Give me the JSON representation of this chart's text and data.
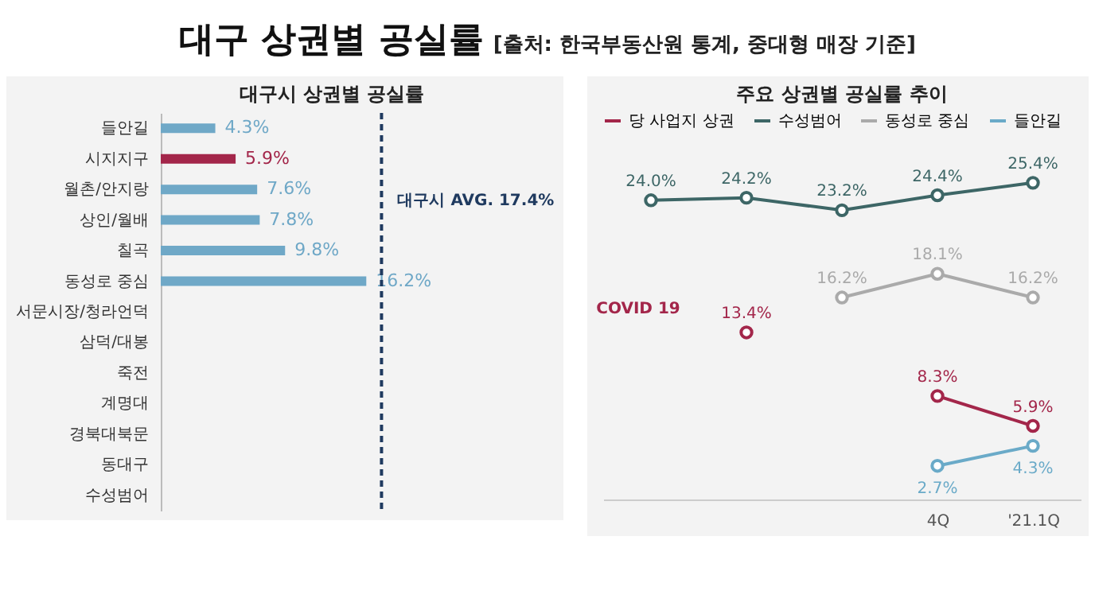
{
  "chart_data": [
    {
      "type": "other",
      "title": "대구 상권별 공실률",
      "subtitle": "[출처: 한국부동산원 통계, 중대형 매장 기준]"
    },
    {
      "type": "bar",
      "orientation": "horizontal",
      "title": "대구시 상권별 공실률",
      "categories": [
        "들안길",
        "시지지구",
        "월촌/안지랑",
        "상인/월배",
        "칠곡",
        "동성로 중심",
        "서문시장/청라언덕",
        "삼덕/대봉",
        "죽전",
        "계명대",
        "경북대북문",
        "동대구",
        "수성범어"
      ],
      "values": [
        4.3,
        5.9,
        7.6,
        7.8,
        9.8,
        16.2,
        null,
        null,
        null,
        null,
        null,
        null,
        null
      ],
      "colors": [
        "#6fa8c7",
        "#a3264a",
        "#6fa8c7",
        "#6fa8c7",
        "#6fa8c7",
        "#6fa8c7",
        "#6fa8c7",
        "#6fa8c7",
        "#6fa8c7",
        "#6fa8c7",
        "#6fa8c7",
        "#6fa8c7",
        "#6fa8c7"
      ],
      "value_labels": [
        "4.3%",
        "5.9%",
        "7.6%",
        "7.8%",
        "9.8%",
        "16.2%",
        null,
        null,
        null,
        null,
        null,
        null,
        null
      ],
      "ref_lines": [
        {
          "axis": "x",
          "value": 17.4,
          "label": "대구시 AVG. 17.4%",
          "color": "#1f3a5f",
          "line_style": "dashed"
        }
      ],
      "tick_labels": "y"
    },
    {
      "type": "line",
      "title": "주요 상권별 공실률 추이",
      "categories": [
        null,
        null,
        null,
        "4Q",
        "'21.1Q"
      ],
      "series": [
        {
          "name": "당 사업지 상권",
          "color": "#a3264a",
          "values": [
            null,
            13.4,
            null,
            8.3,
            5.9
          ],
          "value_labels": [
            null,
            "13.4%",
            null,
            "8.3%",
            "5.9%"
          ]
        },
        {
          "name": "수성범어",
          "color": "#3d6666",
          "values": [
            24.0,
            24.2,
            23.2,
            24.4,
            25.4
          ],
          "value_labels": [
            "24.0%",
            "24.2%",
            "23.2%",
            "24.4%",
            "25.4%"
          ]
        },
        {
          "name": "동성로 중심",
          "color": "#aaaaaa",
          "values": [
            null,
            null,
            16.2,
            18.1,
            16.2
          ],
          "value_labels": [
            null,
            null,
            "16.2%",
            "18.1%",
            "16.2%"
          ]
        },
        {
          "name": "들안길",
          "color": "#6aaac8",
          "values": [
            null,
            null,
            null,
            2.7,
            4.3
          ],
          "value_labels": [
            null,
            null,
            null,
            "2.7%",
            "4.3%"
          ]
        }
      ],
      "annotations": [
        "COVID 19"
      ],
      "marker": "circle",
      "line_style": "solid",
      "legend": "top",
      "tick_labels": "x"
    }
  ]
}
